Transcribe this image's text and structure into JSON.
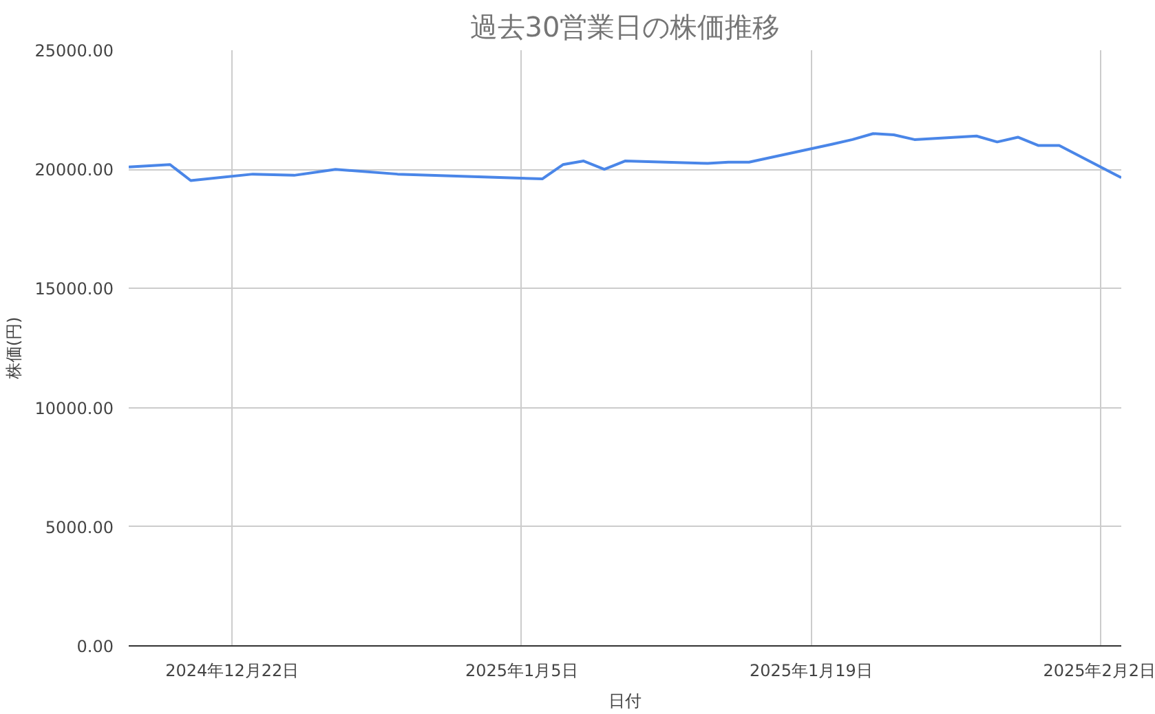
{
  "chart_data": {
    "type": "line",
    "title": "過去30営業日の株価推移",
    "xlabel": "日付",
    "ylabel": "株価(円)",
    "x": [
      "2024-12-17",
      "2024-12-19",
      "2024-12-20",
      "2024-12-23",
      "2024-12-25",
      "2024-12-27",
      "2024-12-30",
      "2025-01-06",
      "2025-01-07",
      "2025-01-08",
      "2025-01-09",
      "2025-01-10",
      "2025-01-14",
      "2025-01-15",
      "2025-01-16",
      "2025-01-20",
      "2025-01-21",
      "2025-01-22",
      "2025-01-23",
      "2025-01-24",
      "2025-01-27",
      "2025-01-28",
      "2025-01-29",
      "2025-01-30",
      "2025-01-31",
      "2025-02-03"
    ],
    "series": [
      {
        "color": "#4a86e8",
        "values": [
          20100,
          20200,
          19530,
          19800,
          19750,
          20000,
          19800,
          19600,
          20200,
          20350,
          20000,
          20350,
          20250,
          20300,
          20300,
          21050,
          21250,
          21500,
          21450,
          21250,
          21400,
          21150,
          21350,
          21000,
          21000,
          19650
        ]
      }
    ],
    "xlim": [
      "2024-12-17",
      "2025-02-03"
    ],
    "xticks": [
      {
        "value": "2024-12-22",
        "label": "2024年12月22日"
      },
      {
        "value": "2025-01-05",
        "label": "2025年1月5日"
      },
      {
        "value": "2025-01-19",
        "label": "2025年1月19日"
      },
      {
        "value": "2025-02-02",
        "label": "2025年2月2日"
      }
    ],
    "ylim": [
      0,
      25000
    ],
    "yticks": [
      {
        "value": 0,
        "label": "0.00"
      },
      {
        "value": 5000,
        "label": "5000.00"
      },
      {
        "value": 10000,
        "label": "10000.00"
      },
      {
        "value": 15000,
        "label": "15000.00"
      },
      {
        "value": 20000,
        "label": "20000.00"
      },
      {
        "value": 25000,
        "label": "25000.00"
      }
    ],
    "grid": true,
    "marker": "none",
    "line_style": "solid"
  }
}
